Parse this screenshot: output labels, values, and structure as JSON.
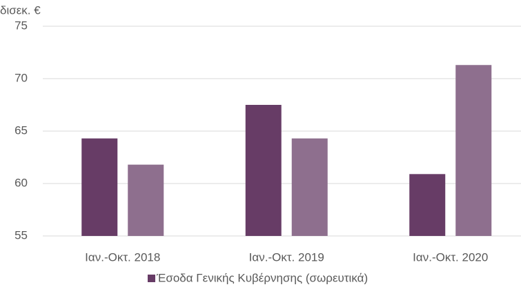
{
  "chart_data": {
    "type": "bar",
    "y_axis_label": "δισεκ. €",
    "categories": [
      "Ιαν.-Οκτ. 2018",
      "Ιαν.-Οκτ. 2019",
      "Ιαν.-Οκτ. 2020"
    ],
    "series": [
      {
        "name": "Έσοδα Γενικής Κυβέρνησης (σωρευτικά)",
        "color": "#673c66",
        "values": [
          64.3,
          67.5,
          60.9
        ]
      },
      {
        "color": "#8e6f8e",
        "values": [
          61.8,
          64.3,
          71.3
        ]
      }
    ],
    "ylim": [
      55,
      75
    ],
    "yticks": [
      55,
      60,
      65,
      70,
      75
    ],
    "grid": true,
    "legend": "bottom"
  }
}
